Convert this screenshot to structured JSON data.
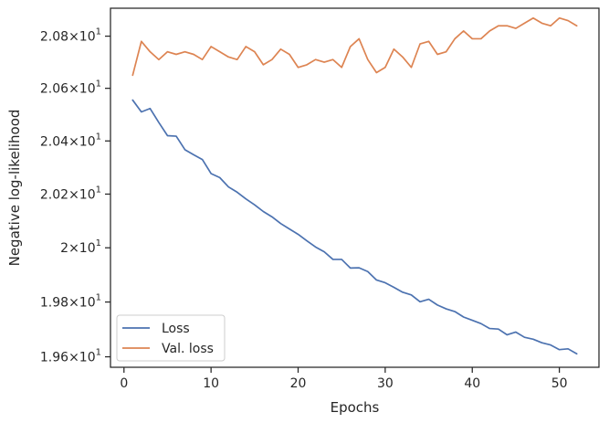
{
  "chart_data": {
    "type": "line",
    "title": "",
    "xlabel": "Epochs",
    "ylabel": "Negative log-likelihood",
    "xlim": [
      -1.55,
      54.55
    ],
    "ylim": [
      19.562,
      20.908
    ],
    "y_scale": "log",
    "grid": false,
    "legend_position": "lower-left",
    "x_ticks": [
      {
        "value": 0,
        "label": "0"
      },
      {
        "value": 10,
        "label": "10"
      },
      {
        "value": 20,
        "label": "20"
      },
      {
        "value": 30,
        "label": "30"
      },
      {
        "value": 40,
        "label": "40"
      },
      {
        "value": 50,
        "label": "50"
      }
    ],
    "y_ticks": [
      {
        "value": 19.6,
        "mantissa": "1.96",
        "base": "10",
        "exp": "1"
      },
      {
        "value": 19.8,
        "mantissa": "1.98",
        "base": "10",
        "exp": "1"
      },
      {
        "value": 20.0,
        "mantissa": "2",
        "base": "10",
        "exp": "1"
      },
      {
        "value": 20.2,
        "mantissa": "2.02",
        "base": "10",
        "exp": "1"
      },
      {
        "value": 20.4,
        "mantissa": "2.04",
        "base": "10",
        "exp": "1"
      },
      {
        "value": 20.6,
        "mantissa": "2.06",
        "base": "10",
        "exp": "1"
      },
      {
        "value": 20.8,
        "mantissa": "2.08",
        "base": "10",
        "exp": "1"
      }
    ],
    "x": [
      1,
      2,
      3,
      4,
      5,
      6,
      7,
      8,
      9,
      10,
      11,
      12,
      13,
      14,
      15,
      16,
      17,
      18,
      19,
      20,
      21,
      22,
      23,
      24,
      25,
      26,
      27,
      28,
      29,
      30,
      31,
      32,
      33,
      34,
      35,
      36,
      37,
      38,
      39,
      40,
      41,
      42,
      43,
      44,
      45,
      46,
      47,
      48,
      49,
      50,
      51,
      52
    ],
    "series": [
      {
        "name": "Loss",
        "color": "#4c72b0",
        "values": [
          20.555,
          20.51,
          20.523,
          20.47,
          20.42,
          20.418,
          20.367,
          20.348,
          20.33,
          20.277,
          20.262,
          20.227,
          20.207,
          20.182,
          20.16,
          20.135,
          20.115,
          20.09,
          20.07,
          20.05,
          20.026,
          20.003,
          19.985,
          19.957,
          19.957,
          19.925,
          19.926,
          19.912,
          19.881,
          19.871,
          19.854,
          19.836,
          19.826,
          19.801,
          19.81,
          19.789,
          19.775,
          19.765,
          19.745,
          19.733,
          19.721,
          19.703,
          19.701,
          19.68,
          19.69,
          19.671,
          19.664,
          19.651,
          19.643,
          19.626,
          19.629,
          19.611
        ]
      },
      {
        "name": "Val. loss",
        "color": "#dd8452",
        "values": [
          20.65,
          20.78,
          20.74,
          20.71,
          20.74,
          20.73,
          20.74,
          20.73,
          20.71,
          20.76,
          20.74,
          20.72,
          20.71,
          20.76,
          20.74,
          20.69,
          20.71,
          20.75,
          20.73,
          20.68,
          20.69,
          20.71,
          20.7,
          20.71,
          20.68,
          20.76,
          20.79,
          20.71,
          20.66,
          20.68,
          20.75,
          20.72,
          20.68,
          20.77,
          20.78,
          20.73,
          20.74,
          20.79,
          20.82,
          20.79,
          20.79,
          20.82,
          20.84,
          20.84,
          20.83,
          20.85,
          20.87,
          20.85,
          20.84,
          20.87,
          20.86,
          20.84
        ]
      }
    ]
  }
}
